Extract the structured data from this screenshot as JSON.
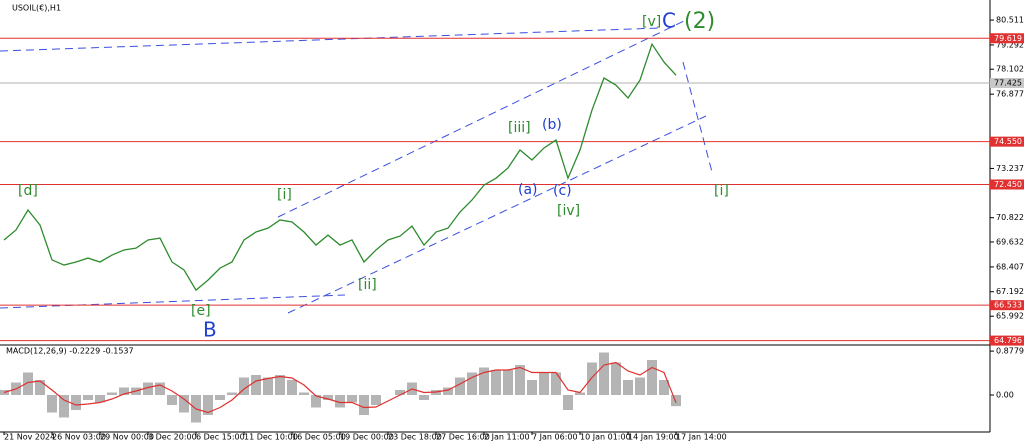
{
  "chart_data": [
    {
      "type": "line",
      "title": "USOIL(€),H1",
      "categories": [
        "21 Nov 2024",
        null,
        null,
        null,
        "26 Nov 03:00",
        null,
        null,
        null,
        "29 Nov 00:00",
        null,
        null,
        null,
        "3 Dec 20:00",
        null,
        null,
        null,
        "6 Dec 15:00",
        null,
        null,
        null,
        "11 Dec 10:00",
        null,
        null,
        null,
        "16 Dec 05:00",
        null,
        null,
        null,
        "19 Dec 00:00",
        null,
        null,
        null,
        "23 Dec 18:00",
        null,
        null,
        null,
        "27 Dec 16:00",
        null,
        null,
        null,
        "2 Jan 11:00",
        null,
        null,
        null,
        "7 Jan 06:00",
        null,
        null,
        null,
        "10 Jan 01:00",
        null,
        null,
        null,
        "14 Jan 19:00",
        null,
        null,
        null,
        "17 Jan 14:00"
      ],
      "values": [
        69.73,
        70.22,
        71.2,
        70.46,
        68.75,
        68.5,
        68.65,
        68.84,
        68.65,
        68.99,
        69.24,
        69.33,
        69.73,
        69.82,
        68.65,
        68.26,
        67.27,
        67.76,
        68.35,
        68.65,
        69.73,
        70.12,
        70.31,
        70.71,
        70.61,
        70.12,
        69.48,
        69.97,
        69.48,
        69.73,
        68.65,
        69.24,
        69.73,
        69.92,
        70.41,
        69.48,
        70.12,
        70.31,
        71.1,
        71.69,
        72.42,
        72.76,
        73.26,
        74.14,
        73.65,
        74.24,
        74.63,
        72.76,
        74.14,
        76.1,
        77.67,
        77.32,
        76.69,
        77.57,
        79.33,
        78.45,
        77.81
      ],
      "color": "#2e8b2e",
      "ylim": [
        64.58,
        81.25
      ],
      "yticks": [
        80.511,
        79.292,
        78.102,
        76.877,
        73.237,
        70.822,
        69.632,
        68.407,
        67.192,
        65.992
      ],
      "levels": [
        79.619,
        {
          "value": 74.55,
          "label": "74.550"
        },
        {
          "value": 72.45,
          "label": "72.450"
        },
        66.533,
        64.796
      ],
      "level_color": "#e03030",
      "current_price": 77.425,
      "annotations": [
        {
          "text": "[d]",
          "color": "#2e8b2e"
        },
        {
          "text": "[e]",
          "color": "#2e8b2e"
        },
        {
          "text": "B",
          "color": "#1f3fd0"
        },
        {
          "text": "[i]",
          "color": "#2e8b2e"
        },
        {
          "text": "[ii]",
          "color": "#2e8b2e"
        },
        {
          "text": "[iii]",
          "color": "#2e8b2e"
        },
        {
          "text": "(b)",
          "color": "#1f3fd0"
        },
        {
          "text": "(a)",
          "color": "#1f3fd0"
        },
        {
          "text": "(c)",
          "color": "#1f3fd0"
        },
        {
          "text": "[iv]",
          "color": "#2e8b2e"
        },
        {
          "text": "[v]",
          "color": "#2e8b2e"
        },
        {
          "text": "C",
          "color": "#1f3fd0"
        },
        {
          "text": "(2)",
          "color": "#2e8b2e"
        },
        {
          "text": "[i]",
          "color": "#2e8b2e"
        }
      ]
    },
    {
      "type": "macd",
      "title": "MACD(12,26,9) -0.2229 -0.1537",
      "series": [
        {
          "values": [
            0.1,
            0.25,
            0.45,
            0.3,
            -0.35,
            -0.45,
            -0.3,
            -0.1,
            -0.15,
            0.05,
            0.15,
            0.15,
            0.25,
            0.25,
            -0.2,
            -0.35,
            -0.55,
            -0.4,
            -0.1,
            0.05,
            0.35,
            0.4,
            0.35,
            0.4,
            0.3,
            0.05,
            -0.25,
            -0.1,
            -0.25,
            -0.15,
            -0.4,
            -0.2,
            0.0,
            0.1,
            0.25,
            -0.1,
            0.1,
            0.15,
            0.35,
            0.45,
            0.55,
            0.5,
            0.5,
            0.6,
            0.3,
            0.45,
            0.45,
            -0.3,
            0.05,
            0.65,
            0.85,
            0.65,
            0.3,
            0.35,
            0.7,
            0.3,
            -0.2229
          ],
          "color": "#b4b4b4"
        },
        {
          "values": [
            0.05,
            0.12,
            0.25,
            0.28,
            0.1,
            -0.1,
            -0.2,
            -0.18,
            -0.15,
            -0.08,
            0.02,
            0.08,
            0.15,
            0.2,
            0.08,
            -0.08,
            -0.28,
            -0.35,
            -0.25,
            -0.1,
            0.12,
            0.28,
            0.33,
            0.37,
            0.34,
            0.2,
            -0.02,
            -0.08,
            -0.15,
            -0.15,
            -0.25,
            -0.24,
            -0.12,
            0.0,
            0.12,
            0.05,
            0.06,
            0.1,
            0.22,
            0.35,
            0.45,
            0.5,
            0.5,
            0.55,
            0.45,
            0.45,
            0.45,
            0.1,
            0.05,
            0.35,
            0.6,
            0.65,
            0.48,
            0.4,
            0.55,
            0.45,
            -0.1537
          ],
          "color": "#e03030"
        }
      ],
      "ylim": [
        -0.74,
        1.0
      ],
      "yticks": [
        0.8779,
        {
          "value": 0,
          "label": "0.00"
        }
      ]
    }
  ]
}
